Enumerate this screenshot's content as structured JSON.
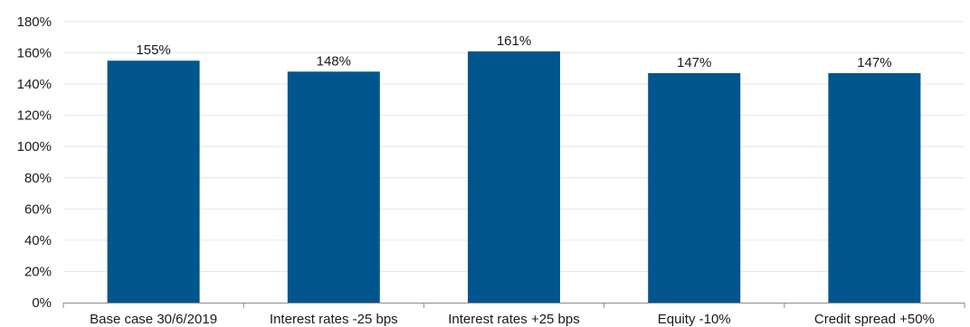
{
  "chart_data": {
    "type": "bar",
    "categories": [
      "Base case 30/6/2019",
      "Interest rates -25 bps",
      "Interest rates +25 bps",
      "Equity -10%",
      "Credit spread +50%"
    ],
    "values": [
      155,
      148,
      161,
      147,
      147
    ],
    "data_labels": [
      "155%",
      "148%",
      "161%",
      "147%",
      "147%"
    ],
    "y_ticks": [
      "0%",
      "20%",
      "40%",
      "60%",
      "80%",
      "100%",
      "120%",
      "140%",
      "160%",
      "180%"
    ],
    "ylim": [
      0,
      180
    ],
    "title": "",
    "xlabel": "",
    "ylabel": "",
    "grid": true,
    "bar_color": "#00568c",
    "grid_color": "#e6e6e6"
  }
}
